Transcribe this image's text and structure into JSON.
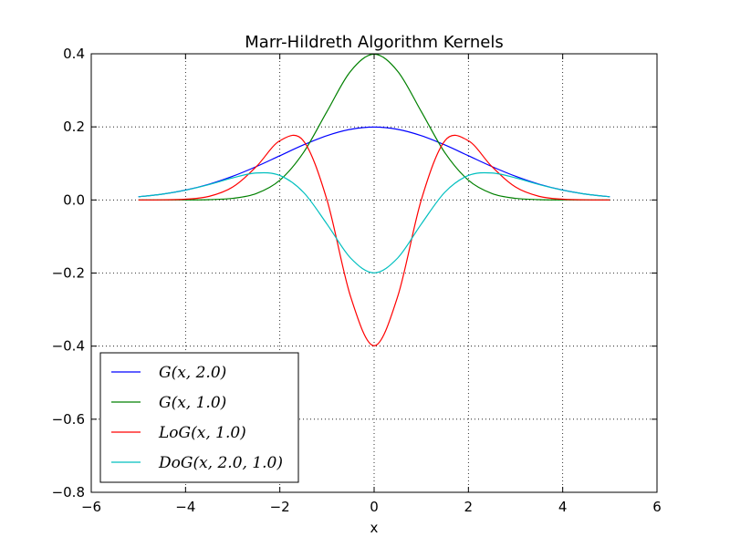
{
  "chart_data": {
    "type": "line",
    "title": "Marr-Hildreth Algorithm Kernels",
    "xlabel": "x",
    "ylabel": "",
    "xlim": [
      -6,
      6
    ],
    "ylim": [
      -0.8,
      0.4
    ],
    "xticks": [
      -6,
      -4,
      -2,
      0,
      2,
      4,
      6
    ],
    "yticks": [
      -0.8,
      -0.6,
      -0.4,
      -0.2,
      0.0,
      0.2,
      0.4
    ],
    "xtick_labels": [
      "−6",
      "−4",
      "−2",
      "0",
      "2",
      "4",
      "6"
    ],
    "ytick_labels": [
      "−0.8",
      "−0.6",
      "−0.4",
      "−0.2",
      "0.0",
      "0.2",
      "0.4"
    ],
    "grid": true,
    "legend_position": "lower-left",
    "x": [
      -5.0,
      -4.5,
      -4.0,
      -3.5,
      -3.0,
      -2.5,
      -2.0,
      -1.5,
      -1.0,
      -0.5,
      0.0,
      0.5,
      1.0,
      1.5,
      2.0,
      2.5,
      3.0,
      3.5,
      4.0,
      4.5,
      5.0
    ],
    "series": [
      {
        "name": "G(x, 2.0)",
        "color": "#0000ff",
        "values": [
          0.0088,
          0.0158,
          0.027,
          0.0431,
          0.0648,
          0.0913,
          0.121,
          0.1506,
          0.176,
          0.1933,
          0.1995,
          0.1933,
          0.176,
          0.1506,
          0.121,
          0.0913,
          0.0648,
          0.0431,
          0.027,
          0.0158,
          0.0088
        ]
      },
      {
        "name": "G(x, 1.0)",
        "color": "#008000",
        "values": [
          0.0,
          0.0,
          0.0001,
          0.0009,
          0.0044,
          0.0175,
          0.054,
          0.1295,
          0.242,
          0.3521,
          0.3989,
          0.3521,
          0.242,
          0.1295,
          0.054,
          0.0175,
          0.0044,
          0.0009,
          0.0001,
          0.0,
          0.0
        ]
      },
      {
        "name": "LoG(x, 1.0)",
        "color": "#ff0000",
        "values": [
          0.0,
          0.0003,
          0.002,
          0.0099,
          0.0354,
          0.091,
          0.162,
          0.1619,
          0.0,
          -0.2641,
          -0.3989,
          -0.2641,
          0.0,
          0.1619,
          0.162,
          0.091,
          0.0354,
          0.0099,
          0.002,
          0.0003,
          0.0
        ]
      },
      {
        "name": "DoG(x, 2.0, 1.0)",
        "color": "#00bfbf",
        "values": [
          0.0088,
          0.0158,
          0.0269,
          0.0422,
          0.0604,
          0.0738,
          0.067,
          0.0211,
          -0.066,
          -0.1588,
          -0.1995,
          -0.1588,
          -0.066,
          0.0211,
          0.067,
          0.0738,
          0.0604,
          0.0422,
          0.0269,
          0.0158,
          0.0088
        ]
      }
    ]
  }
}
